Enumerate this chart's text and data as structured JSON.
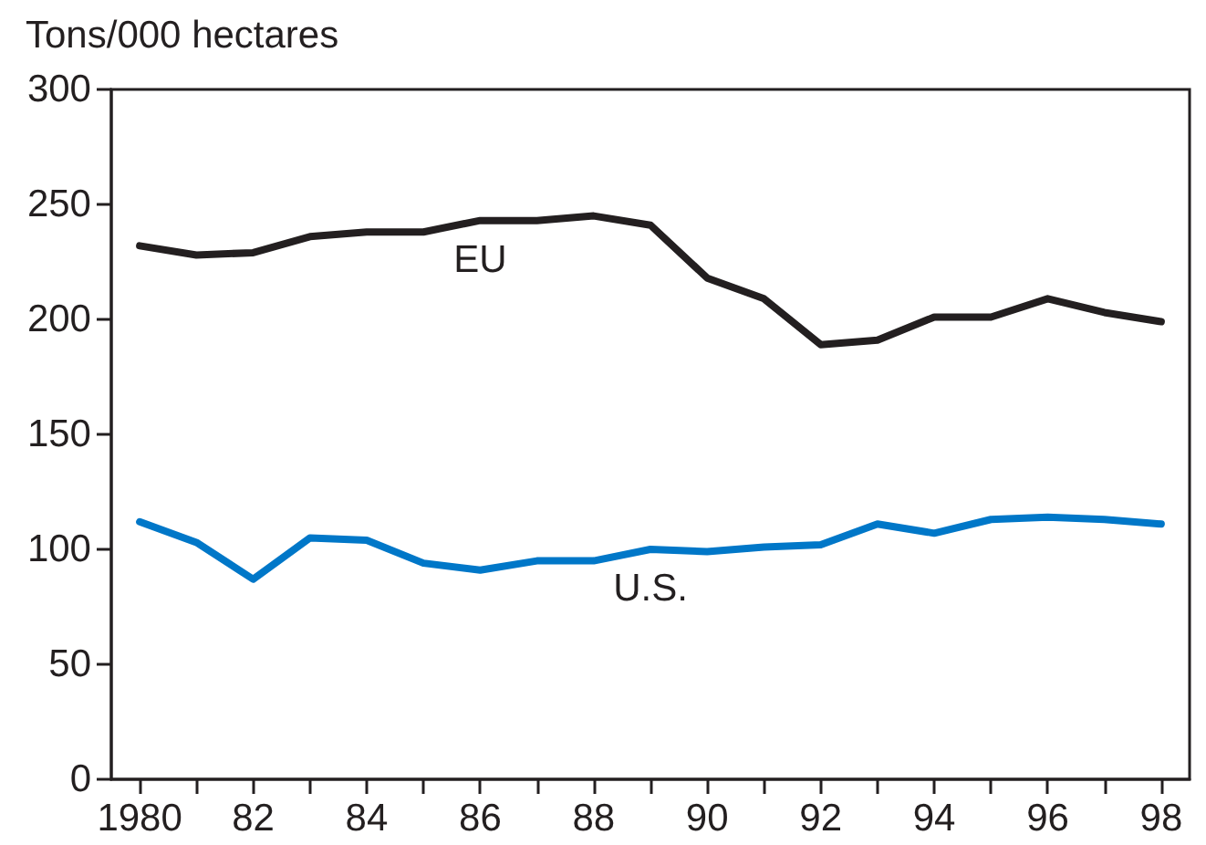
{
  "chart_data": {
    "type": "line",
    "ylabel": "Tons/000 hectares",
    "x": [
      1980,
      1981,
      1982,
      1983,
      1984,
      1985,
      1986,
      1987,
      1988,
      1989,
      1990,
      1991,
      1992,
      1993,
      1994,
      1995,
      1996,
      1997,
      1998
    ],
    "xlim": [
      1979.5,
      1998.5
    ],
    "xticks": [
      {
        "value": 1980,
        "label": "1980"
      },
      {
        "value": 1981,
        "label": null
      },
      {
        "value": 1982,
        "label": "82"
      },
      {
        "value": 1983,
        "label": null
      },
      {
        "value": 1984,
        "label": "84"
      },
      {
        "value": 1985,
        "label": null
      },
      {
        "value": 1986,
        "label": "86"
      },
      {
        "value": 1987,
        "label": null
      },
      {
        "value": 1988,
        "label": "88"
      },
      {
        "value": 1989,
        "label": null
      },
      {
        "value": 1990,
        "label": "90"
      },
      {
        "value": 1991,
        "label": null
      },
      {
        "value": 1992,
        "label": "92"
      },
      {
        "value": 1993,
        "label": null
      },
      {
        "value": 1994,
        "label": "94"
      },
      {
        "value": 1995,
        "label": null
      },
      {
        "value": 1996,
        "label": "96"
      },
      {
        "value": 1997,
        "label": null
      },
      {
        "value": 1998,
        "label": "98"
      }
    ],
    "ylim": [
      0,
      300
    ],
    "yticks": [
      0,
      50,
      100,
      150,
      200,
      250,
      300
    ],
    "series": [
      {
        "name": "EU",
        "color": "#231f20",
        "values": [
          232,
          228,
          229,
          236,
          238,
          238,
          243,
          243,
          245,
          241,
          218,
          209,
          189,
          191,
          201,
          201,
          209,
          203,
          199
        ]
      },
      {
        "name": "U.S.",
        "color": "#0077c8",
        "values": [
          112,
          103,
          87,
          105,
          104,
          94,
          91,
          95,
          95,
          100,
          99,
          101,
          102,
          111,
          107,
          113,
          114,
          113,
          111
        ]
      }
    ]
  }
}
